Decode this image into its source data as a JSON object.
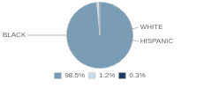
{
  "chart_data": {
    "type": "pie",
    "categories": [
      "98.5%",
      "1.2%",
      "0.3%"
    ],
    "values": [
      98.5,
      1.2,
      0.3
    ],
    "colors": [
      "#7a9db5",
      "#c8dce8",
      "#1e3a5f"
    ],
    "legend": "bottom",
    "annotations": [
      "BLACK",
      "WHITE",
      "HISPANIC"
    ]
  }
}
